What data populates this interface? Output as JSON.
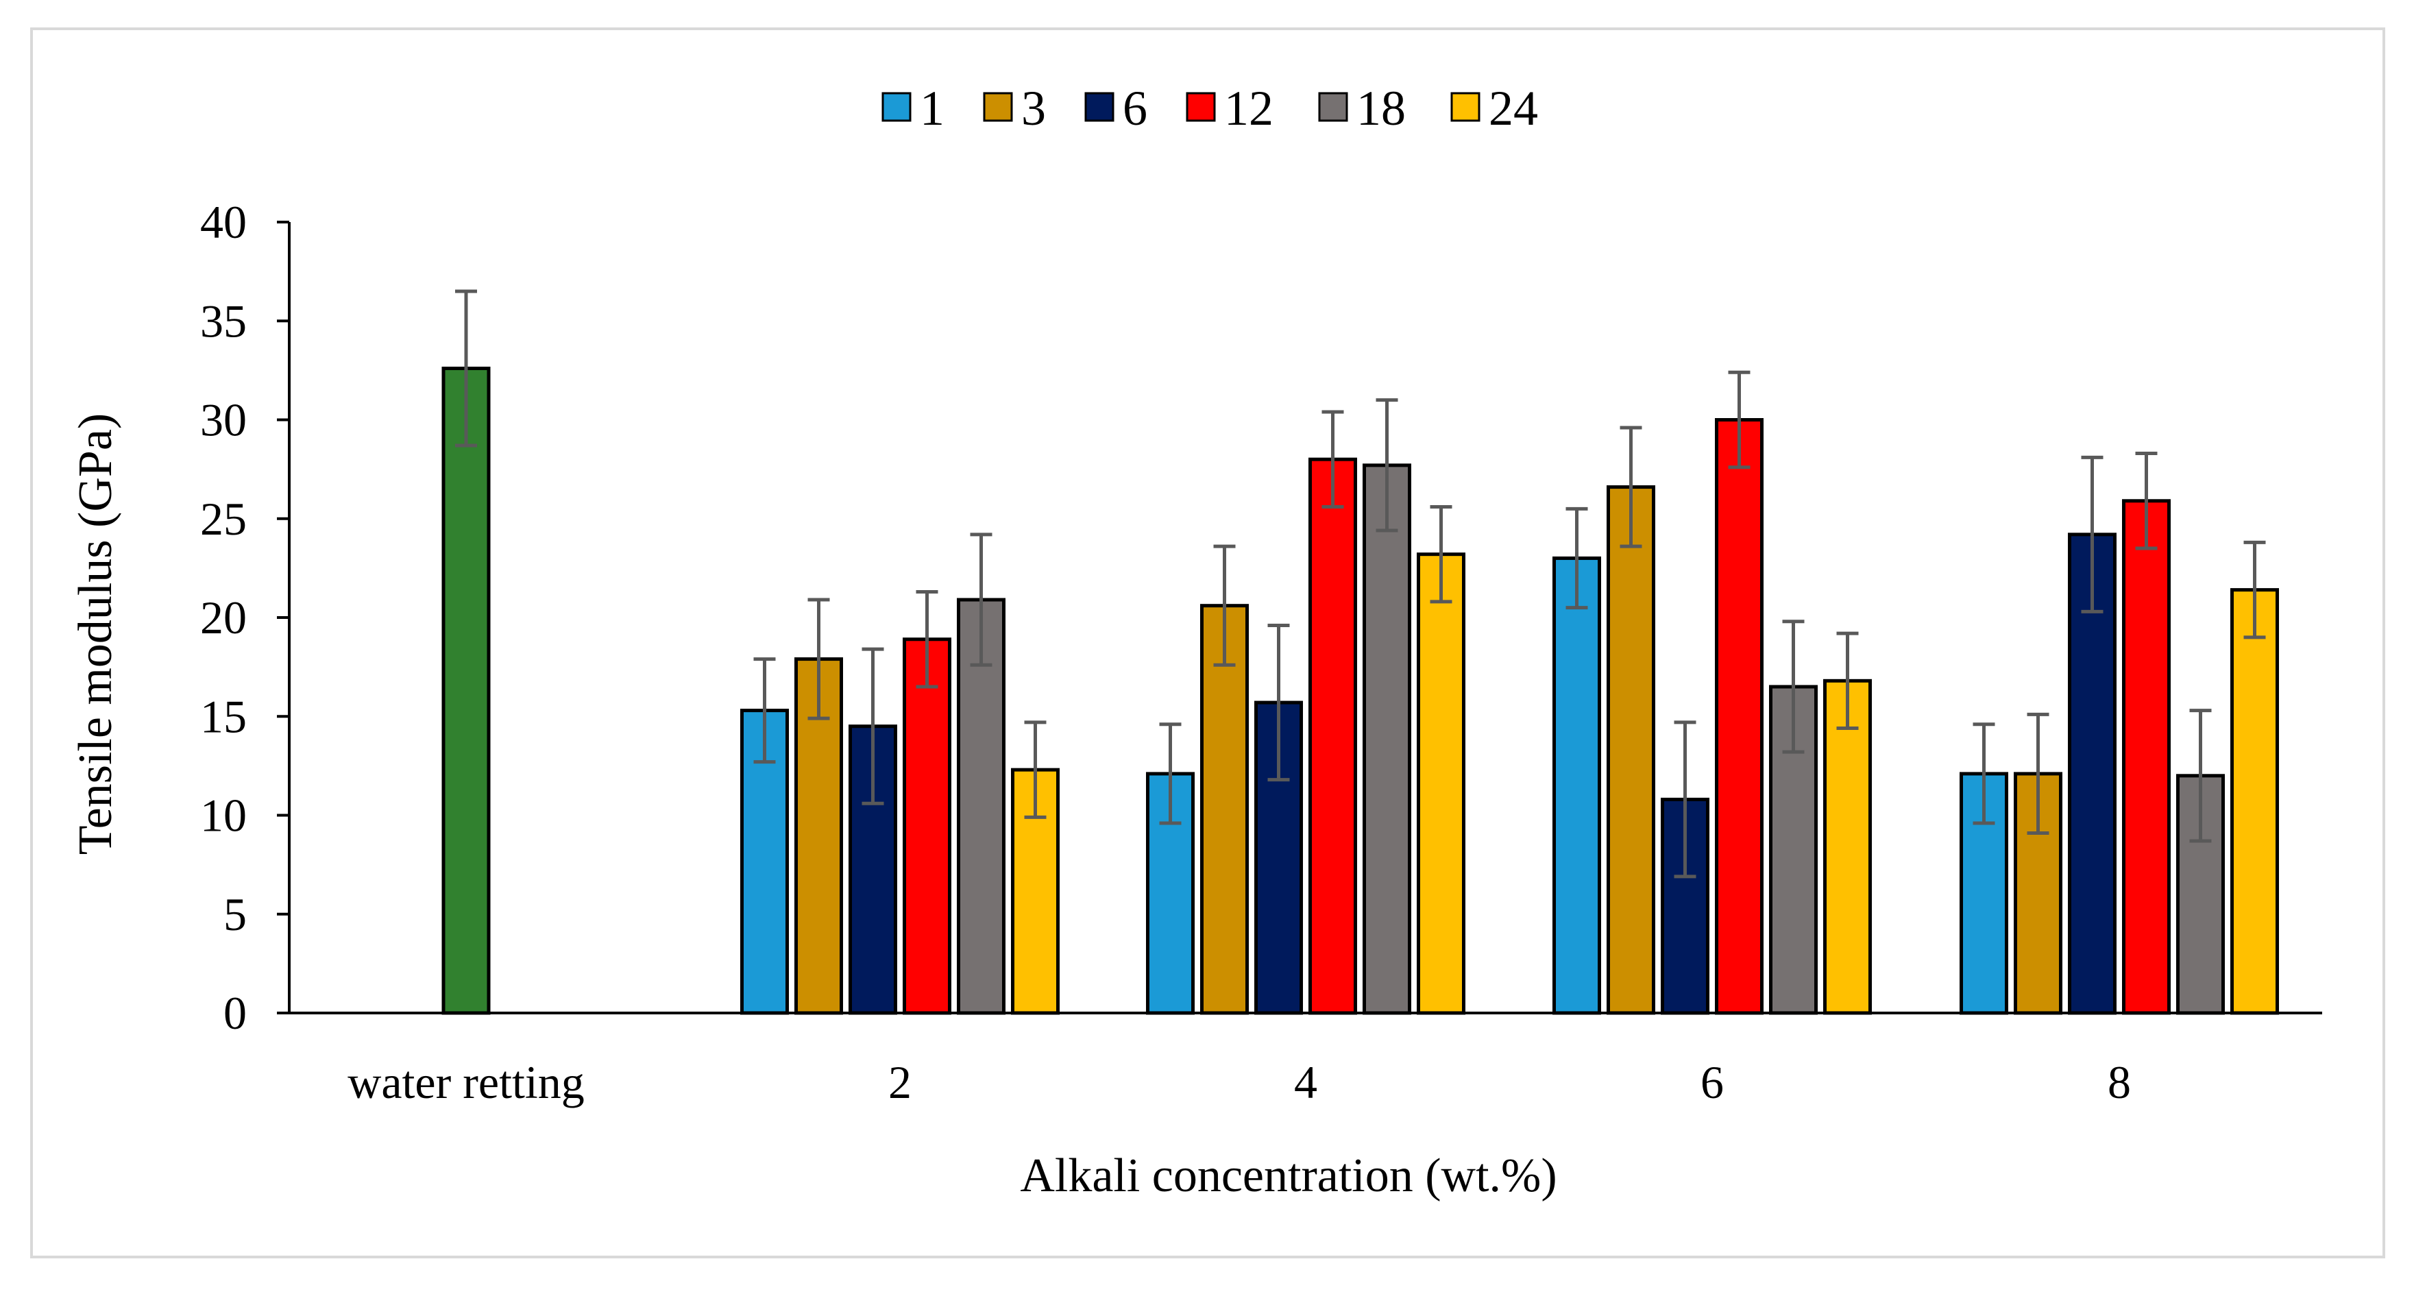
{
  "chart_data": {
    "type": "bar",
    "xlabel": "Alkali concentration (wt.%)",
    "ylabel": "Tensile modulus (GPa)",
    "ylim": [
      0,
      40
    ],
    "yticks": [
      "0",
      "5",
      "10",
      "15",
      "20",
      "25",
      "30",
      "35",
      "40"
    ],
    "categories": [
      "water retting",
      "2",
      "4",
      "6",
      "8"
    ],
    "legend_position": "top-center",
    "grid": false,
    "control": {
      "category": "water retting",
      "value": 32.6,
      "error": 3.9,
      "color": "#31812f"
    },
    "series": [
      {
        "name": "1",
        "color": "#1b9ad6",
        "values": [
          null,
          15.3,
          12.1,
          23.0,
          12.1
        ],
        "errors": [
          null,
          2.6,
          2.5,
          2.5,
          2.5
        ]
      },
      {
        "name": "3",
        "color": "#cc8f00",
        "values": [
          null,
          17.9,
          20.6,
          26.6,
          12.1
        ],
        "errors": [
          null,
          3.0,
          3.0,
          3.0,
          3.0
        ]
      },
      {
        "name": "6",
        "color": "#001a5c",
        "values": [
          null,
          14.5,
          15.7,
          10.8,
          24.2
        ],
        "errors": [
          null,
          3.9,
          3.9,
          3.9,
          3.9
        ]
      },
      {
        "name": "12",
        "color": "#ff0000",
        "values": [
          null,
          18.9,
          28.0,
          30.0,
          25.9
        ],
        "errors": [
          null,
          2.4,
          2.4,
          2.4,
          2.4
        ]
      },
      {
        "name": "18",
        "color": "#767171",
        "values": [
          null,
          20.9,
          27.7,
          16.5,
          12.0
        ],
        "errors": [
          null,
          3.3,
          3.3,
          3.3,
          3.3
        ]
      },
      {
        "name": "24",
        "color": "#ffc000",
        "values": [
          null,
          12.3,
          23.2,
          16.8,
          21.4
        ],
        "errors": [
          null,
          2.4,
          2.4,
          2.4,
          2.4
        ]
      }
    ],
    "error_bar_color": "#595959",
    "axis_color": "#000000"
  }
}
